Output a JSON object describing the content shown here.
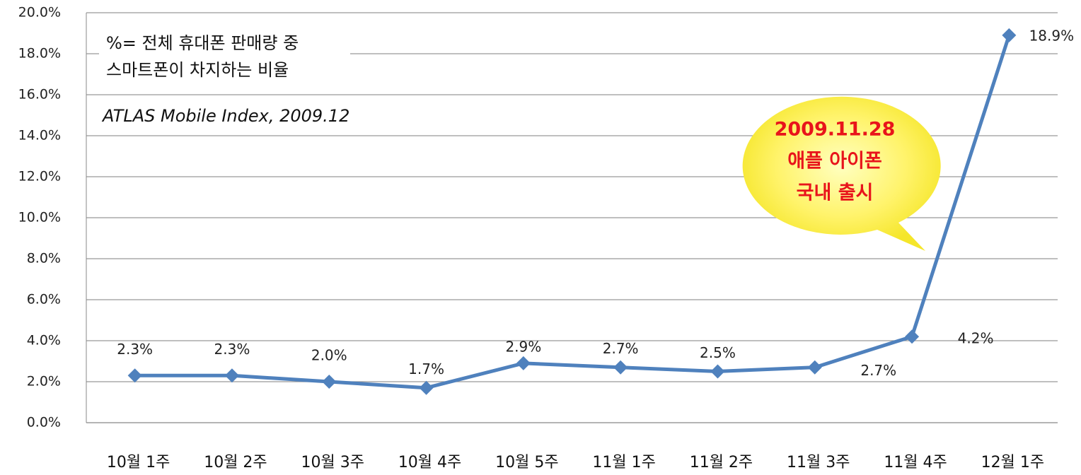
{
  "chart_data": {
    "type": "line",
    "categories": [
      "10월 1주",
      "10월 2주",
      "10월 3주",
      "10월 4주",
      "10월 5주",
      "11월 1주",
      "11월 2주",
      "11월 3주",
      "11월 4주",
      "12월 1주"
    ],
    "series": [
      {
        "color": "#4f81bd",
        "values": [
          2.3,
          2.3,
          2.0,
          1.7,
          2.9,
          2.7,
          2.5,
          2.7,
          4.2,
          18.9
        ],
        "value_labels": [
          "2.3%",
          "2.3%",
          "2.0%",
          "1.7%",
          "2.9%",
          "2.7%",
          "2.5%",
          "2.7%",
          "4.2%",
          "18.9%"
        ]
      }
    ],
    "ylim": [
      0,
      20
    ],
    "yticks": [
      {
        "value": 0,
        "label": "0.0%"
      },
      {
        "value": 2,
        "label": "2.0%"
      },
      {
        "value": 4,
        "label": "4.0%"
      },
      {
        "value": 6,
        "label": "6.0%"
      },
      {
        "value": 8,
        "label": "8.0%"
      },
      {
        "value": 10,
        "label": "10.0%"
      },
      {
        "value": 12,
        "label": "12.0%"
      },
      {
        "value": 14,
        "label": "14.0%"
      },
      {
        "value": 16,
        "label": "16.0%"
      },
      {
        "value": 18,
        "label": "18.0%"
      },
      {
        "value": 20,
        "label": "20.0%"
      }
    ],
    "grid": true,
    "annotations": {
      "legend_note": [
        "%= 전체 휴대폰 판매량 중",
        "스마트폰이 차지하는 비율"
      ],
      "source": "ATLAS Mobile Index, 2009.12",
      "callout": [
        "2009.11.28",
        "애플 아이폰",
        "국내 출시"
      ]
    }
  }
}
